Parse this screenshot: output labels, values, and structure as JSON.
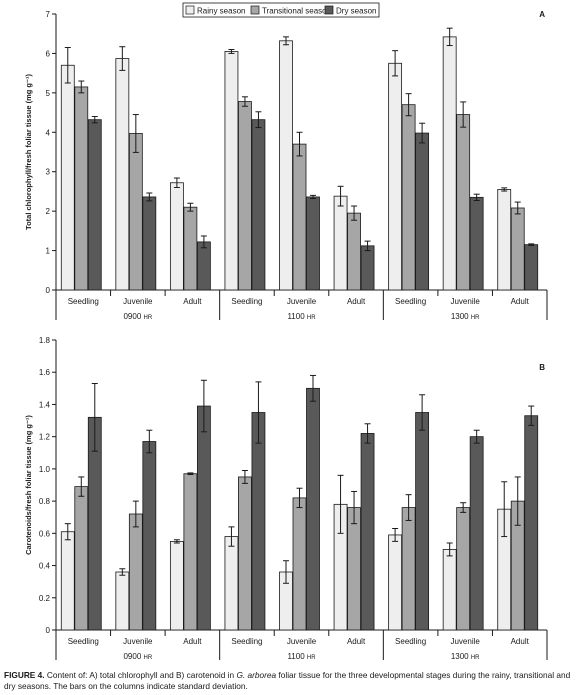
{
  "legend": [
    {
      "label": "Rainy season",
      "color": "#eeeeee"
    },
    {
      "label": "Transitional season",
      "color": "#a6a6a6"
    },
    {
      "label": "Dry season",
      "color": "#595959"
    }
  ],
  "chart_data": [
    {
      "type": "bar",
      "panel_label": "A",
      "ylabel": "Total chlorophyll/fresh foliar tissue (mg g⁻¹)",
      "ylim": [
        0,
        7
      ],
      "yticks": [
        "0",
        "1",
        "2",
        "3",
        "4",
        "5",
        "6",
        "7"
      ],
      "categories": [
        "Seedling",
        "Juvenile",
        "Adult",
        "Seedling",
        "Juvenile",
        "Adult",
        "Seedling",
        "Juvenile",
        "Adult"
      ],
      "groups": [
        {
          "label": "0900",
          "unit": "HR"
        },
        {
          "label": "1100",
          "unit": "HR"
        },
        {
          "label": "1300",
          "unit": "HR"
        }
      ],
      "legend_position": "top-center",
      "series": [
        {
          "name": "Rainy season",
          "values": [
            5.7,
            5.87,
            2.72,
            6.05,
            6.32,
            2.38,
            5.75,
            6.42,
            2.55
          ],
          "errors": [
            0.45,
            0.3,
            0.12,
            0.05,
            0.1,
            0.25,
            0.32,
            0.22,
            0.04
          ]
        },
        {
          "name": "Transitional season",
          "values": [
            5.15,
            3.97,
            2.1,
            4.78,
            3.7,
            1.95,
            4.7,
            4.45,
            2.08
          ],
          "errors": [
            0.15,
            0.48,
            0.1,
            0.12,
            0.3,
            0.18,
            0.28,
            0.32,
            0.15
          ]
        },
        {
          "name": "Dry season",
          "values": [
            4.32,
            2.36,
            1.22,
            4.32,
            2.36,
            1.12,
            3.98,
            2.35,
            1.15
          ],
          "errors": [
            0.08,
            0.1,
            0.15,
            0.2,
            0.04,
            0.12,
            0.25,
            0.08,
            0.02
          ]
        }
      ]
    },
    {
      "type": "bar",
      "panel_label": "B",
      "ylabel": "Carotenoids/fresh foliar tissue (mg g⁻¹)",
      "ylim": [
        0,
        1.8
      ],
      "yticks": [
        "0",
        "0.2",
        "0.4",
        "0.6",
        "0.8",
        "1.0",
        "1.2",
        "1.4",
        "1.6",
        "1.8"
      ],
      "categories": [
        "Seedling",
        "Juvenile",
        "Adult",
        "Seedling",
        "Juvenile",
        "Adult",
        "Seedling",
        "Juvenile",
        "Adult"
      ],
      "groups": [
        {
          "label": "0900",
          "unit": "HR"
        },
        {
          "label": "1100",
          "unit": "HR"
        },
        {
          "label": "1300",
          "unit": "HR"
        }
      ],
      "series": [
        {
          "name": "Rainy season",
          "values": [
            0.61,
            0.36,
            0.55,
            0.58,
            0.36,
            0.78,
            0.59,
            0.5,
            0.75
          ],
          "errors": [
            0.05,
            0.02,
            0.01,
            0.06,
            0.07,
            0.18,
            0.04,
            0.04,
            0.17
          ]
        },
        {
          "name": "Transitional season",
          "values": [
            0.89,
            0.72,
            0.97,
            0.95,
            0.82,
            0.76,
            0.76,
            0.76,
            0.8
          ],
          "errors": [
            0.06,
            0.08,
            0.005,
            0.04,
            0.06,
            0.1,
            0.08,
            0.03,
            0.15
          ]
        },
        {
          "name": "Dry season",
          "values": [
            1.32,
            1.17,
            1.39,
            1.35,
            1.5,
            1.22,
            1.35,
            1.2,
            1.33
          ],
          "errors": [
            0.21,
            0.07,
            0.16,
            0.19,
            0.08,
            0.06,
            0.11,
            0.04,
            0.06
          ]
        }
      ]
    }
  ],
  "caption": {
    "figure_label": "FIGURE 4.",
    "text_before_species": " Content of: A) total chlorophyll and B) carotenoid in ",
    "species": "G. arborea",
    "text_after_species": " foliar tissue for the three developmental stages during the rainy, transitional and dry seasons. The bars on the columns indicate standard deviation."
  }
}
